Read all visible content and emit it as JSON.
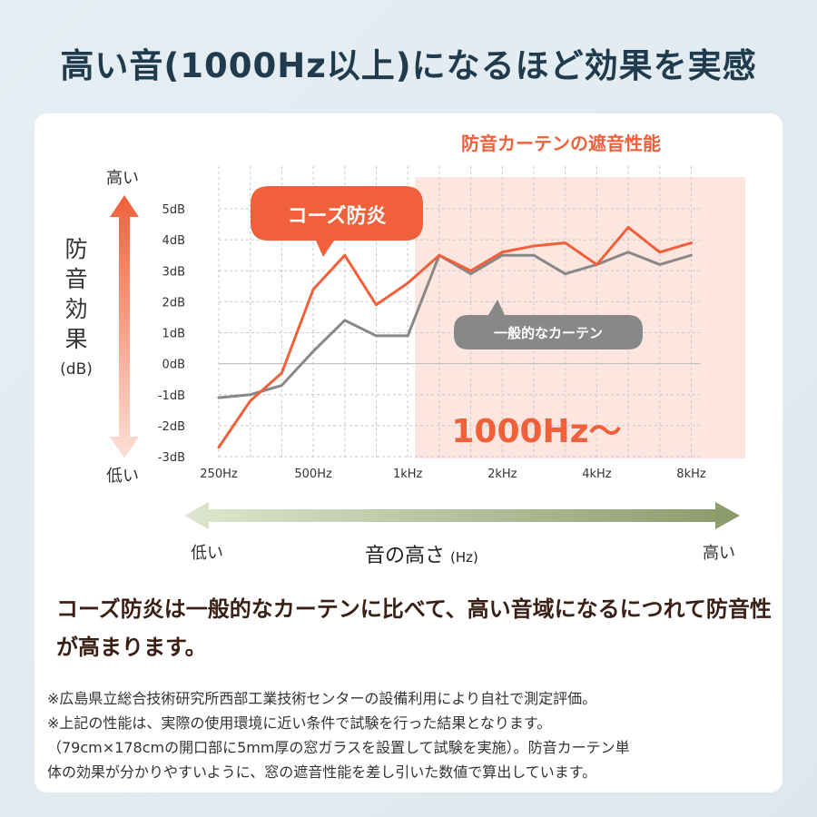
{
  "headline": "高い音(1000Hz以上)になるほど効果を実感",
  "chart_data": {
    "type": "line",
    "title": "防音カーテンの遮音性能",
    "x": [
      "250Hz",
      "",
      "",
      "500Hz",
      "",
      "",
      "1kHz",
      "",
      "",
      "2kHz",
      "",
      "",
      "4kHz",
      "",
      "",
      "8kHz"
    ],
    "x_tick_labels": [
      "250Hz",
      "500Hz",
      "1kHz",
      "2kHz",
      "4kHz",
      "8kHz"
    ],
    "y_tick_labels": [
      "5dB",
      "4dB",
      "3dB",
      "2dB",
      "1dB",
      "0dB",
      "-1dB",
      "-2dB",
      "-3dB"
    ],
    "ylim": [
      -3,
      5
    ],
    "ylabel": "防音効果",
    "ylabel_unit": "(dB)",
    "y_high_label": "高い",
    "y_low_label": "低い",
    "xlabel": "音の高さ",
    "xlabel_unit": "(Hz)",
    "x_low_label": "低い",
    "x_high_label": "高い",
    "highlight_label": "1000Hz〜",
    "grid": true,
    "series": [
      {
        "name": "コーズ防炎",
        "color": "#f0603a",
        "values": [
          -2.7,
          -1.2,
          -0.3,
          2.4,
          3.5,
          1.9,
          2.6,
          3.5,
          3.0,
          3.6,
          3.8,
          3.9,
          3.2,
          4.4,
          3.6,
          3.9
        ]
      },
      {
        "name": "一般的なカーテン",
        "color": "#888888",
        "values": [
          -1.1,
          -1.0,
          -0.7,
          0.4,
          1.4,
          0.9,
          0.9,
          3.5,
          2.9,
          3.5,
          3.5,
          2.9,
          3.2,
          3.6,
          3.2,
          3.5
        ]
      }
    ]
  },
  "summary": "コーズ防炎は一般的なカーテンに比べて、高い音域になるにつれて防音性が高まります。",
  "notes": [
    "※広島県立総合技術研究所西部工業技術センターの設備利用により自社で測定評価。",
    "※上記の性能は、実際の使用環境に近い条件で試験を行った結果となります。",
    "（79cm×178cmの開口部に5mm厚の窓ガラスを設置して試験を実施）。防音カーテン単",
    "体の効果が分かりやすいように、窓の遮音性能を差し引いた数値で算出しています。"
  ]
}
